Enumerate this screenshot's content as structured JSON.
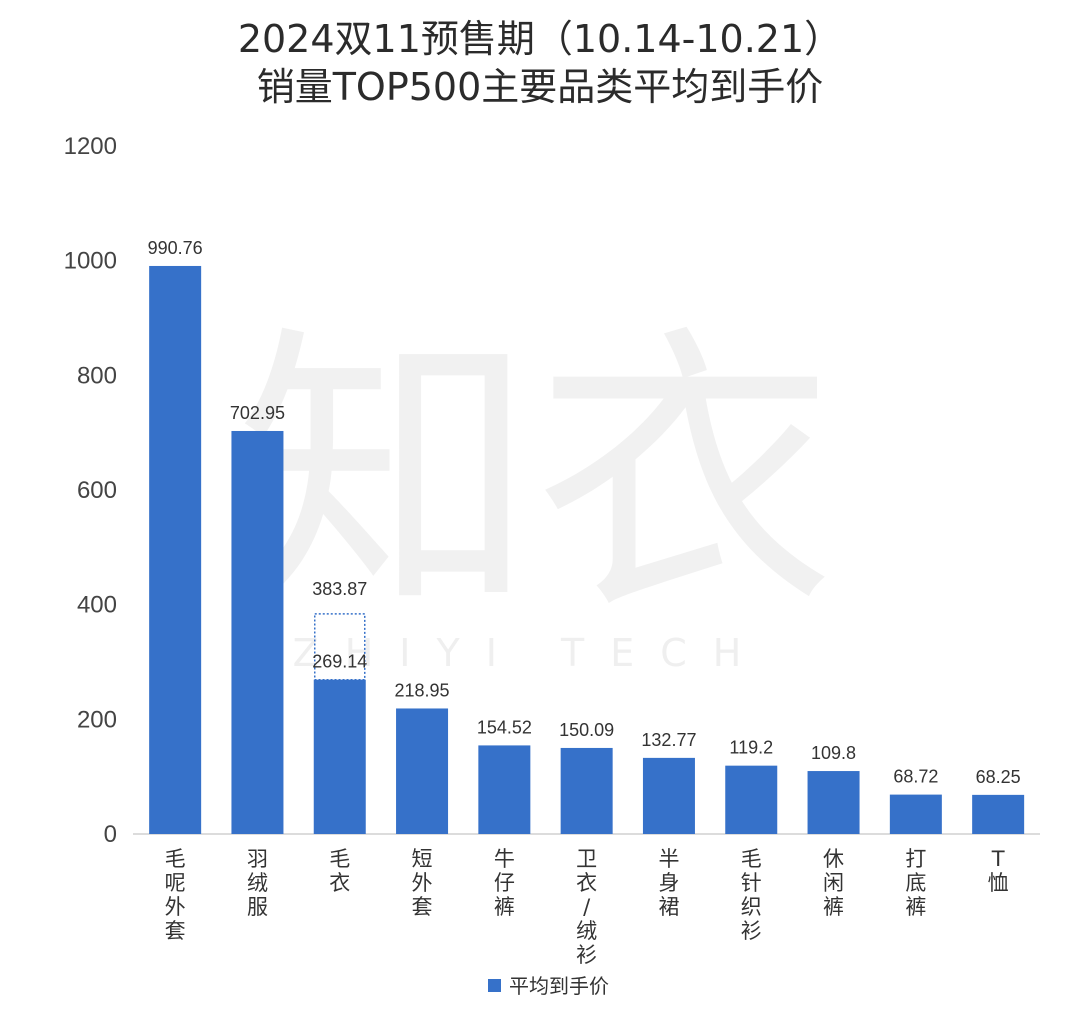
{
  "chart_data": {
    "type": "bar",
    "title": [
      "2024双11预售期（10.14-10.21）",
      "销量TOP500主要品类平均到手价"
    ],
    "categories": [
      "毛呢外套",
      "羽绒服",
      "毛衣",
      "短外套",
      "牛仔裤",
      "卫衣/绒衫",
      "半身裙",
      "毛针织衫",
      "休闲裤",
      "打底裤",
      "T恤"
    ],
    "series": [
      {
        "name": "平均到手价",
        "values": [
          990.76,
          702.95,
          269.14,
          218.95,
          154.52,
          150.09,
          132.77,
          119.2,
          109.8,
          68.72,
          68.25
        ],
        "labels": [
          "990.76",
          "702.95",
          "269.14",
          "218.95",
          "154.52",
          "150.09",
          "132.77",
          "119.2",
          "109.8",
          "68.72",
          "68.25"
        ]
      }
    ],
    "annotation": {
      "category": "毛衣",
      "value": 383.87,
      "label": "383.87",
      "style": "dotted-outline"
    },
    "ylim": [
      0,
      1200
    ],
    "yticks": [
      0,
      200,
      400,
      600,
      800,
      1000,
      1200
    ],
    "grid": false,
    "legend": "bottom-center",
    "bar_color": "#3671c9",
    "annotation_color": "#3671c9"
  },
  "watermark": {
    "main": "知衣",
    "sub": "ZHIYI TECH"
  }
}
